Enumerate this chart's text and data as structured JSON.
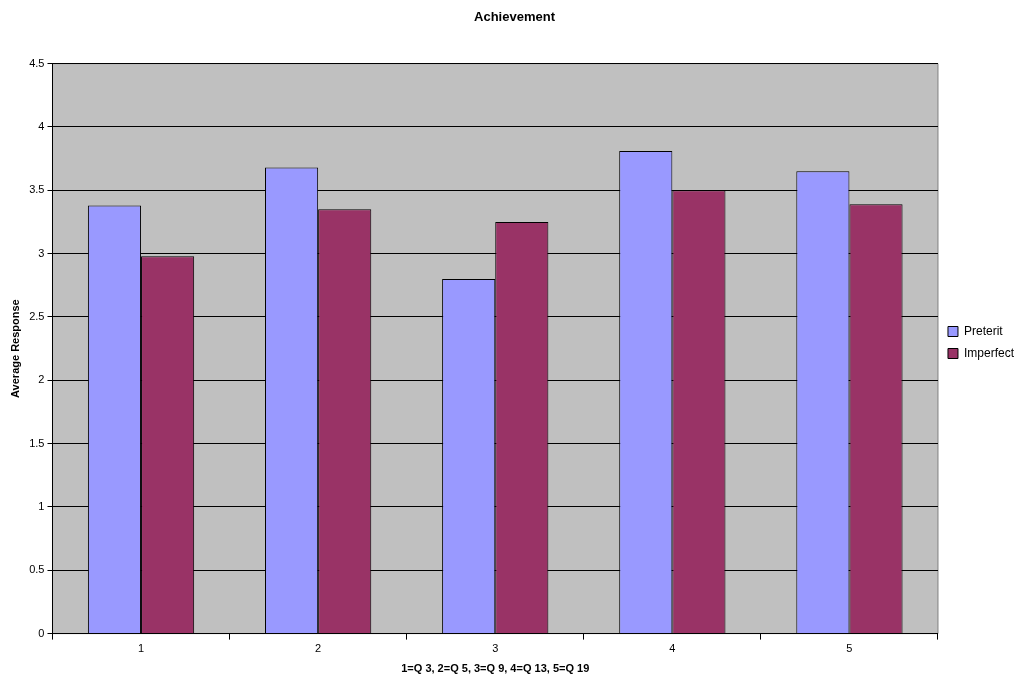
{
  "chart_data": {
    "type": "bar",
    "title": "Achievement",
    "xlabel": "1=Q 3, 2=Q 5, 3=Q 9, 4=Q 13, 5=Q 19",
    "ylabel": "Average Response",
    "categories": [
      "1",
      "2",
      "3",
      "4",
      "5"
    ],
    "series": [
      {
        "name": "Preterit",
        "color": "#9999ff",
        "values": [
          3.38,
          3.68,
          2.8,
          3.81,
          3.65
        ]
      },
      {
        "name": "Imperfect",
        "color": "#993366",
        "values": [
          2.98,
          3.35,
          3.25,
          3.5,
          3.39
        ]
      }
    ],
    "ylim": [
      0,
      4.5
    ],
    "yticks": [
      0,
      0.5,
      1,
      1.5,
      2,
      2.5,
      3,
      3.5,
      4,
      4.5
    ],
    "grid": "y",
    "legend": "right"
  }
}
